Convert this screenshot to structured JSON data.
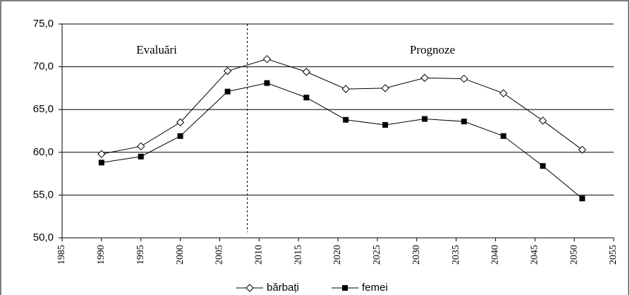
{
  "chart_data": {
    "type": "line",
    "x": [
      1990,
      1995,
      2000,
      2006,
      2011,
      2016,
      2021,
      2026,
      2031,
      2036,
      2041,
      2046,
      2051
    ],
    "series": [
      {
        "name": "bărbați",
        "color": "#000000",
        "marker": "diamond-open",
        "values": [
          59.8,
          60.7,
          63.5,
          69.5,
          70.9,
          69.4,
          67.4,
          67.5,
          68.7,
          68.6,
          66.9,
          63.7,
          60.3
        ]
      },
      {
        "name": "femei",
        "color": "#000000",
        "marker": "square",
        "values": [
          58.8,
          59.5,
          61.9,
          67.1,
          68.1,
          66.4,
          63.8,
          63.2,
          63.9,
          63.6,
          61.9,
          58.4,
          54.6
        ]
      }
    ],
    "xlim": [
      1985,
      2055
    ],
    "xticks": [
      1985,
      1990,
      1995,
      2000,
      2005,
      2010,
      2015,
      2020,
      2025,
      2030,
      2035,
      2040,
      2045,
      2050,
      2055
    ],
    "ylim": [
      50,
      75
    ],
    "yticks": [
      {
        "value": 50,
        "label": "50,0"
      },
      {
        "value": 55,
        "label": "55,0"
      },
      {
        "value": 60,
        "label": "60,0"
      },
      {
        "value": 65,
        "label": "65,0"
      },
      {
        "value": 70,
        "label": "70,0"
      },
      {
        "value": 75,
        "label": "75,0"
      }
    ],
    "grid": true,
    "divider_x": 2008.5,
    "annotations": [
      "Evaluări",
      "Prognoze"
    ],
    "legend": "bottom"
  }
}
